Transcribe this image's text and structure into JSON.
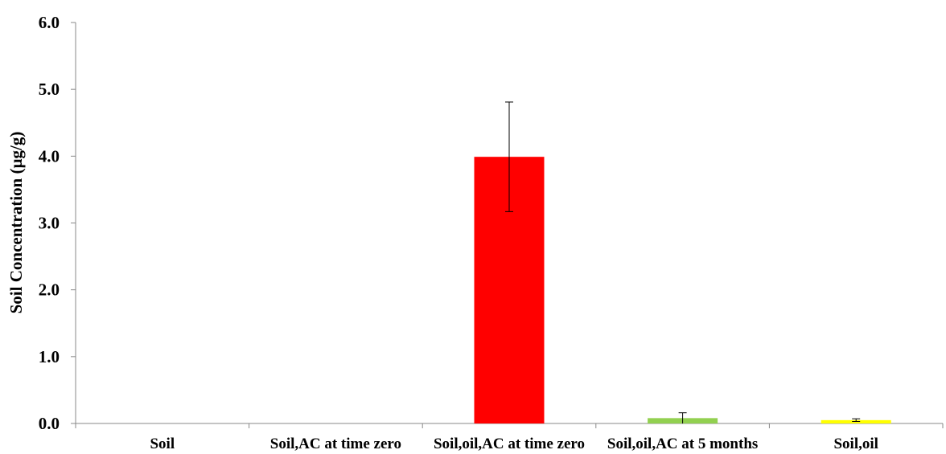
{
  "chart_data": {
    "type": "bar",
    "title": "",
    "xlabel": "",
    "ylabel": "Soil Concentration (µg/g)",
    "ylim": [
      0,
      6
    ],
    "yticks": [
      "0.0",
      "1.0",
      "2.0",
      "3.0",
      "4.0",
      "5.0",
      "6.0"
    ],
    "grid": false,
    "legend": "none",
    "categories": [
      "Soil",
      "Soil,AC at time zero",
      "Soil,oil,AC at time zero",
      "Soil,oil,AC at 5 months",
      "Soil,oil"
    ],
    "values": [
      0.0,
      0.0,
      3.99,
      0.08,
      0.05
    ],
    "errors": [
      0.0,
      0.0,
      0.82,
      0.08,
      0.02
    ],
    "colors": [
      "#ff0000",
      "#ff0000",
      "#ff0000",
      "#92d050",
      "#ffff00"
    ]
  }
}
